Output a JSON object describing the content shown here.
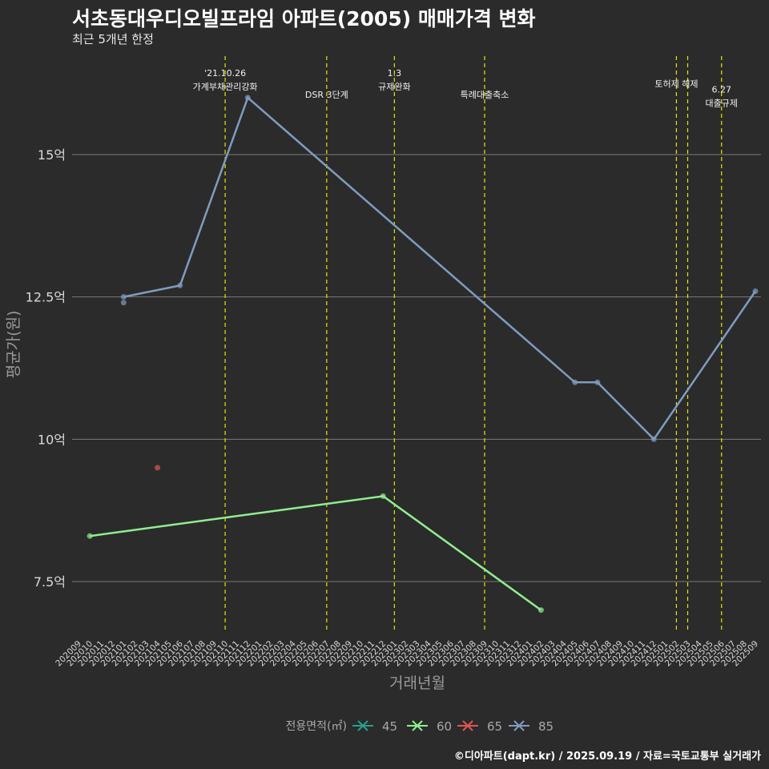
{
  "title": "서초동대우디오빌프라임 아파트(2005) 매매가격 변화",
  "subtitle": "최근 5개년 한정",
  "caption": "©디아파트(dapt.kr) / 2025.09.19 / 자료=국토교통부 실거래가",
  "chart_data": {
    "type": "line",
    "xlabel": "거래년월",
    "ylabel": "평균가(원)",
    "ylim": [
      6.6,
      16.8
    ],
    "yticks": [
      {
        "value": 7.5,
        "label": "7.5억"
      },
      {
        "value": 10,
        "label": "10억"
      },
      {
        "value": 12.5,
        "label": "12.5억"
      },
      {
        "value": 15,
        "label": "15억"
      }
    ],
    "categories": [
      "202009",
      "202010",
      "202011",
      "202012",
      "202101",
      "202102",
      "202103",
      "202104",
      "202105",
      "202106",
      "202107",
      "202108",
      "202109",
      "202110",
      "202111",
      "202112",
      "202201",
      "202202",
      "202203",
      "202204",
      "202205",
      "202206",
      "202207",
      "202208",
      "202209",
      "202210",
      "202211",
      "202212",
      "202301",
      "202302",
      "202303",
      "202304",
      "202305",
      "202306",
      "202307",
      "202308",
      "202309",
      "202310",
      "202311",
      "202312",
      "202401",
      "202402",
      "202403",
      "202404",
      "202405",
      "202406",
      "202407",
      "202408",
      "202409",
      "202410",
      "202411",
      "202412",
      "202501",
      "202502",
      "202503",
      "202504",
      "202505",
      "202506",
      "202507",
      "202508",
      "202509"
    ],
    "legend_title": "전용면적(㎡)",
    "series": [
      {
        "name": "45",
        "color": "#2a9d8f",
        "points": []
      },
      {
        "name": "60",
        "color": "#90ee90",
        "points": [
          {
            "x": "202010",
            "y": 8.3
          },
          {
            "x": "202212",
            "y": 9.0
          },
          {
            "x": "202402",
            "y": 7.0
          }
        ]
      },
      {
        "name": "65",
        "color": "#e05555",
        "points": [
          {
            "x": "202104",
            "y": 9.5
          }
        ]
      },
      {
        "name": "85",
        "color": "#7f9cbf",
        "points": [
          {
            "x": "202101",
            "y": 12.5
          },
          {
            "x": "202101",
            "y": 12.4
          },
          {
            "x": "202106",
            "y": 12.7
          },
          {
            "x": "202112",
            "y": 16.0
          },
          {
            "x": "202405",
            "y": 11.0
          },
          {
            "x": "202407",
            "y": 11.0
          },
          {
            "x": "202412",
            "y": 10.0
          },
          {
            "x": "202509",
            "y": 12.6
          }
        ]
      }
    ],
    "events": [
      {
        "x": "202110",
        "lines": [
          "'21.10.26",
          "가계부채관리강화"
        ],
        "level": 0
      },
      {
        "x": "202207",
        "lines": [
          "DSR 3단계"
        ],
        "level": 2
      },
      {
        "x": "202301",
        "lines": [
          "1.3",
          "규제완화"
        ],
        "level": 0
      },
      {
        "x": "202309",
        "lines": [
          "특례대출축소"
        ],
        "level": 2
      },
      {
        "x": "202502",
        "lines": [
          "토허제 해제"
        ],
        "level": 1
      },
      {
        "x": "202503",
        "lines": [],
        "level": 1
      },
      {
        "x": "202506",
        "lines": [
          "6.27",
          "대출규제"
        ],
        "level": 1.5
      }
    ]
  }
}
